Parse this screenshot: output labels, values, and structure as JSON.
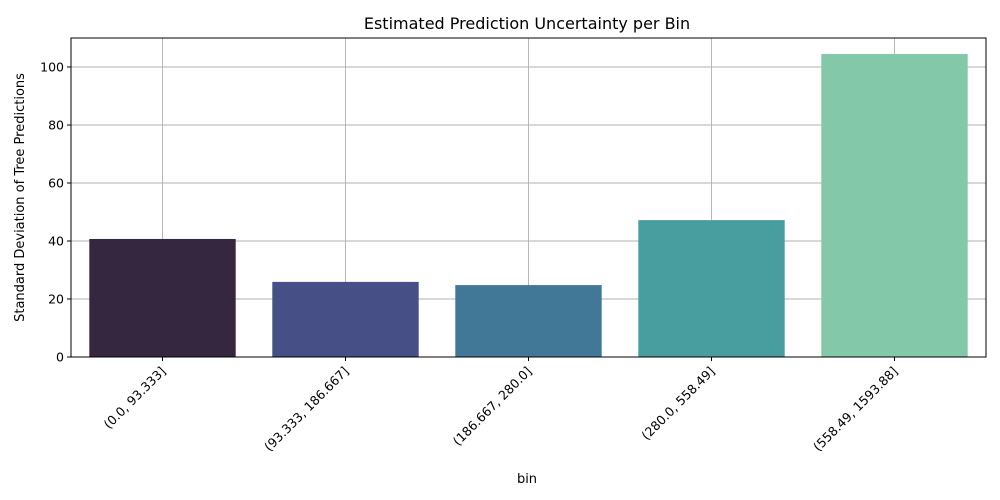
{
  "chart_data": {
    "type": "bar",
    "title": "Estimated Prediction Uncertainty per Bin",
    "xlabel": "bin",
    "ylabel": "Standard Deviation of Tree Predictions",
    "categories": [
      "(0.0, 93.333]",
      "(93.333, 186.667]",
      "(186.667, 280.0]",
      "(280.0, 558.49]",
      "(558.49, 1593.88]"
    ],
    "values": [
      40.7,
      25.9,
      24.8,
      47.2,
      104.5
    ],
    "colors": [
      "#35273f",
      "#464f86",
      "#427897",
      "#489e9e",
      "#84c8aa"
    ],
    "ylim": [
      0,
      110
    ],
    "yticks": [
      0,
      20,
      40,
      60,
      80,
      100
    ],
    "grid": true,
    "legend": "none"
  }
}
